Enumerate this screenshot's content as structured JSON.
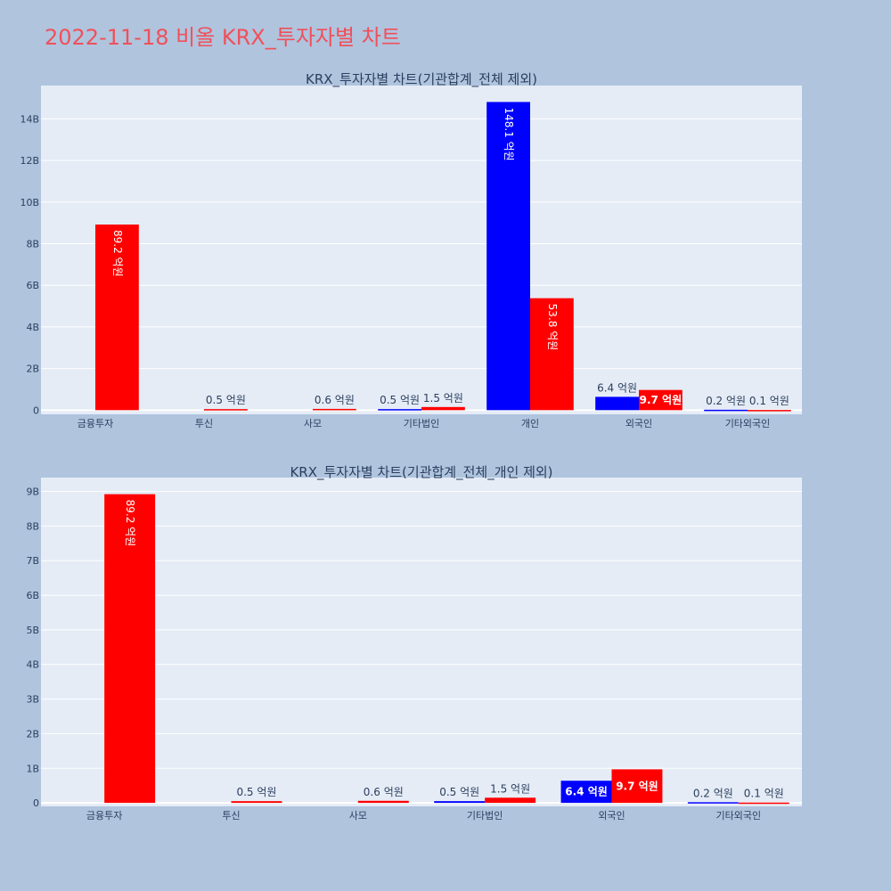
{
  "page": {
    "title": "2022-11-18 비올 KRX_투자자별 차트",
    "background": "#b0c4de",
    "plot_background": "#e5ecf6",
    "title_color": "#f0505a"
  },
  "colors": {
    "buy": "#0000ff",
    "sell": "#ff0000"
  },
  "chart_data": [
    {
      "type": "bar",
      "title": "KRX_투자자별 차트(기관합계_전체 제외)",
      "categories": [
        "금융투자",
        "투신",
        "사모",
        "기타법인",
        "개인",
        "외국인",
        "기타외국인"
      ],
      "series": [
        {
          "color": "#0000ff",
          "values": [
            0,
            0,
            0,
            0.05,
            14.81,
            0.64,
            0.02
          ],
          "labels": [
            "",
            "",
            "",
            "0.5 억원",
            "148.1 억원",
            "6.4 억원",
            "0.2 억원"
          ],
          "label_pos": [
            "",
            "",
            "",
            "outside",
            "inside",
            "outside",
            "outside"
          ]
        },
        {
          "color": "#ff0000",
          "values": [
            8.92,
            0.05,
            0.06,
            0.15,
            5.38,
            0.97,
            0.01
          ],
          "labels": [
            "89.2 억원",
            "0.5 억원",
            "0.6 억원",
            "1.5 억원",
            "53.8 억원",
            "9.7 억원",
            "0.1 억원"
          ],
          "label_pos": [
            "inside",
            "outside",
            "outside",
            "outside",
            "inside",
            "inside-h",
            "outside"
          ]
        }
      ],
      "yticks": [
        0,
        2,
        4,
        6,
        8,
        10,
        12,
        14
      ],
      "ytick_labels": [
        "0",
        "2B",
        "4B",
        "6B",
        "8B",
        "10B",
        "12B",
        "14B"
      ],
      "ylim": [
        -0.2,
        15.6
      ],
      "grid": true
    },
    {
      "type": "bar",
      "title": "KRX_투자자별 차트(기관합계_전체_개인 제외)",
      "categories": [
        "금융투자",
        "투신",
        "사모",
        "기타법인",
        "외국인",
        "기타외국인"
      ],
      "series": [
        {
          "color": "#0000ff",
          "values": [
            0,
            0,
            0,
            0.05,
            0.64,
            0.02
          ],
          "labels": [
            "",
            "",
            "",
            "0.5 억원",
            "6.4 억원",
            "0.2 억원"
          ],
          "label_pos": [
            "",
            "",
            "",
            "outside",
            "inside-h",
            "outside"
          ]
        },
        {
          "color": "#ff0000",
          "values": [
            8.92,
            0.05,
            0.06,
            0.15,
            0.97,
            0.01
          ],
          "labels": [
            "89.2 억원",
            "0.5 억원",
            "0.6 억원",
            "1.5 억원",
            "9.7 억원",
            "0.1 억원"
          ],
          "label_pos": [
            "inside",
            "outside",
            "outside",
            "outside",
            "inside-h",
            "outside"
          ]
        }
      ],
      "yticks": [
        0,
        1,
        2,
        3,
        4,
        5,
        6,
        7,
        8,
        9
      ],
      "ytick_labels": [
        "0",
        "1B",
        "2B",
        "3B",
        "4B",
        "5B",
        "6B",
        "7B",
        "8B",
        "9B"
      ],
      "ylim": [
        -0.1,
        9.4
      ],
      "grid": true
    }
  ]
}
